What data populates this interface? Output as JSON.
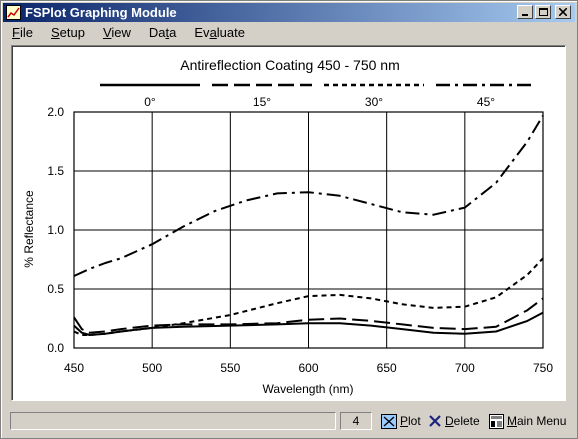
{
  "window": {
    "title": "FSPlot Graphing Module"
  },
  "menu": [
    {
      "pre": "",
      "u": "F",
      "post": "ile"
    },
    {
      "pre": "",
      "u": "S",
      "post": "etup"
    },
    {
      "pre": "",
      "u": "V",
      "post": "iew"
    },
    {
      "pre": "Da",
      "u": "t",
      "post": "a"
    },
    {
      "pre": "Ev",
      "u": "a",
      "post": "luate"
    }
  ],
  "status": {
    "count": "4",
    "plot": {
      "u": "P",
      "post": "lot"
    },
    "delete": {
      "u": "D",
      "post": "elete"
    },
    "main_menu": {
      "u": "M",
      "post": "ain Menu"
    }
  },
  "colors": {
    "title_left": "#0a246a",
    "title_right": "#a6caf0",
    "face": "#d4d0c8"
  },
  "chart_data": {
    "type": "line",
    "title": "Antireflection Coating 450 - 750 nm",
    "xlabel": "Wavelength (nm)",
    "ylabel": "% Reflectance",
    "xlim": [
      450,
      750
    ],
    "ylim": [
      0,
      2
    ],
    "xticks": [
      "450",
      "500",
      "550",
      "600",
      "650",
      "700",
      "750"
    ],
    "yticks": [
      "0.0",
      "0.5",
      "1.0",
      "1.5",
      "2.0"
    ],
    "grid": true,
    "legend_position": "top",
    "series": [
      {
        "name": "0°",
        "style": "solid",
        "x": [
          450,
          455,
          460,
          470,
          480,
          500,
          520,
          550,
          580,
          600,
          620,
          640,
          660,
          680,
          700,
          720,
          740,
          750
        ],
        "y": [
          0.19,
          0.13,
          0.11,
          0.12,
          0.14,
          0.17,
          0.18,
          0.19,
          0.2,
          0.21,
          0.21,
          0.19,
          0.16,
          0.13,
          0.12,
          0.14,
          0.23,
          0.3
        ]
      },
      {
        "name": "15°",
        "style": "longdash",
        "x": [
          450,
          455,
          460,
          470,
          480,
          500,
          520,
          550,
          580,
          600,
          620,
          640,
          660,
          680,
          700,
          720,
          740,
          750
        ],
        "y": [
          0.26,
          0.16,
          0.13,
          0.14,
          0.16,
          0.19,
          0.2,
          0.2,
          0.21,
          0.24,
          0.25,
          0.23,
          0.2,
          0.17,
          0.16,
          0.18,
          0.32,
          0.42
        ]
      },
      {
        "name": "30°",
        "style": "shortdash",
        "x": [
          450,
          455,
          460,
          470,
          480,
          500,
          520,
          550,
          580,
          600,
          620,
          640,
          660,
          680,
          700,
          720,
          740,
          750
        ],
        "y": [
          0.14,
          0.11,
          0.11,
          0.12,
          0.14,
          0.17,
          0.21,
          0.28,
          0.38,
          0.44,
          0.45,
          0.42,
          0.37,
          0.34,
          0.35,
          0.43,
          0.62,
          0.76
        ]
      },
      {
        "name": "45°",
        "style": "dashdot",
        "x": [
          450,
          460,
          470,
          480,
          500,
          520,
          540,
          560,
          580,
          600,
          620,
          640,
          660,
          680,
          700,
          720,
          740,
          750
        ],
        "y": [
          0.61,
          0.67,
          0.72,
          0.76,
          0.88,
          1.03,
          1.16,
          1.25,
          1.31,
          1.32,
          1.29,
          1.22,
          1.15,
          1.13,
          1.19,
          1.4,
          1.75,
          1.97
        ]
      }
    ]
  }
}
